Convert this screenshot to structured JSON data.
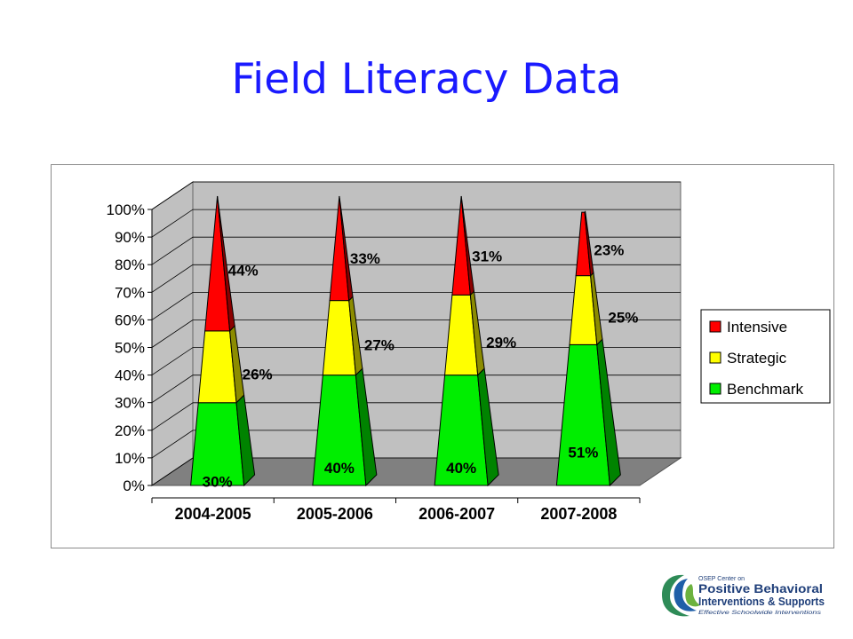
{
  "slide": {
    "title": "Field Literacy Data"
  },
  "logo": {
    "line1": "OSEP Center on",
    "line2": "Positive Behavioral",
    "line3": "Interventions & Supports",
    "line4": "Effective Schoolwide Interventions"
  },
  "colors": {
    "Intensive": "#ff0000",
    "Strategic": "#ffff00",
    "Benchmark": "#00ee00",
    "wall": "#c0c0c0",
    "floor": "#808080",
    "title": "#1a1aff"
  },
  "chart_data": {
    "type": "bar",
    "style": "3d-stacked-pyramid",
    "categories": [
      "2004-2005",
      "2005-2006",
      "2006-2007",
      "2007-2008"
    ],
    "series": [
      {
        "name": "Benchmark",
        "values": [
          30,
          40,
          40,
          51
        ],
        "labels": [
          "30%",
          "40%",
          "40%",
          "51%"
        ]
      },
      {
        "name": "Strategic",
        "values": [
          26,
          27,
          29,
          25
        ],
        "labels": [
          "26%",
          "27%",
          "29%",
          "25%"
        ]
      },
      {
        "name": "Intensive",
        "values": [
          44,
          33,
          31,
          23
        ],
        "labels": [
          "44%",
          "33%",
          "31%",
          "23%"
        ]
      }
    ],
    "yticks": [
      "0%",
      "10%",
      "20%",
      "30%",
      "40%",
      "50%",
      "60%",
      "70%",
      "80%",
      "90%",
      "100%"
    ],
    "ylim": [
      0,
      100
    ],
    "stacked": true,
    "grid": true,
    "legend": {
      "position": "right",
      "entries": [
        "Intensive",
        "Strategic",
        "Benchmark"
      ]
    }
  }
}
